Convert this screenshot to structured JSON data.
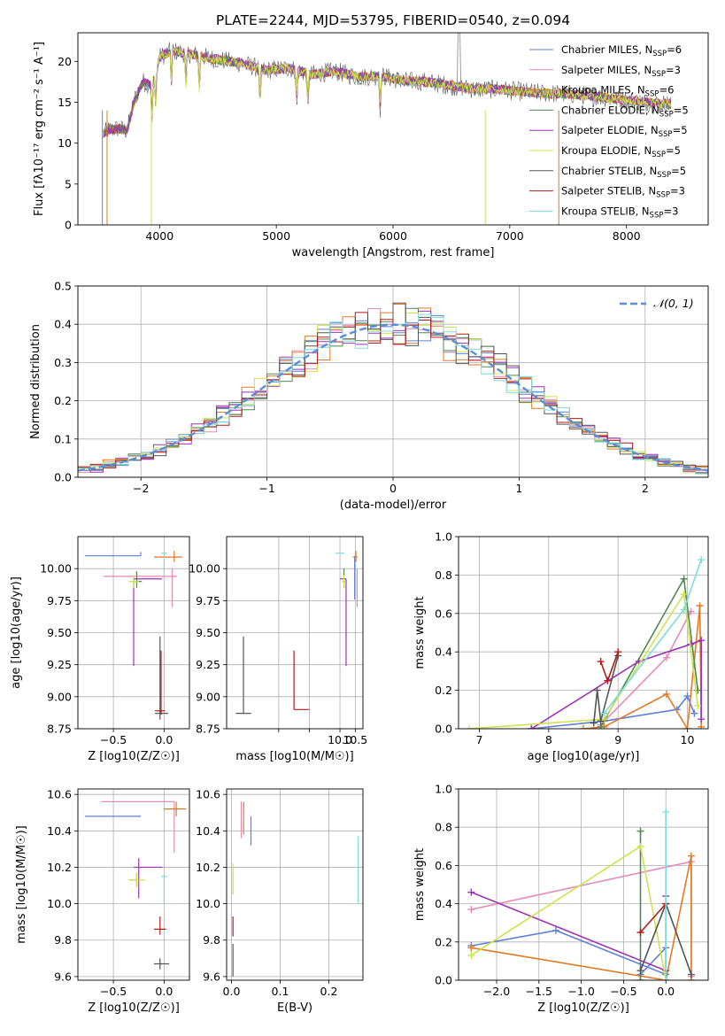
{
  "title": "PLATE=2244, MJD=53795, FIBERID=0540, z=0.094",
  "colors": {
    "Chabrier MILES": "#5f7fd8",
    "Salpeter MILES": "#e48ab6",
    "Kroupa MILES": "#e07a25",
    "Chabrier ELODIE": "#4d8a52",
    "Salpeter ELODIE": "#9b35b4",
    "Kroupa ELODIE": "#cfe24f",
    "Chabrier STELIB": "#555555",
    "Salpeter STELIB": "#b21a1a",
    "Kroupa STELIB": "#7fdcdc",
    "normal": "#5b8ed6"
  },
  "chart_data": [
    {
      "id": "spectrum",
      "type": "line",
      "xlabel": "wavelength [Angstrom, rest frame]",
      "ylabel": "Flux [fλ10⁻¹⁷ erg cm⁻² s⁻¹ A⁻¹]",
      "xlim": [
        3300,
        8700
      ],
      "ylim": [
        0,
        23.5
      ],
      "xticks": [
        4000,
        5000,
        6000,
        7000,
        8000
      ],
      "yticks": [
        0,
        5,
        10,
        15,
        20
      ],
      "grid": false,
      "legend_position": "upper right",
      "continuum_x": [
        3500,
        3560,
        3650,
        3720,
        3790,
        3860,
        3940,
        4000,
        4100,
        4300,
        4500,
        4700,
        4900,
        5100,
        5300,
        5500,
        5700,
        5900,
        6100,
        6300,
        6500,
        6700,
        6900,
        7100,
        7300,
        7500,
        7700,
        7900,
        8100,
        8300
      ],
      "continuum_y": [
        11.0,
        11.6,
        11.8,
        11.5,
        15.5,
        17.5,
        17.0,
        20.5,
        21.3,
        20.8,
        20.2,
        19.8,
        18.9,
        19.2,
        18.4,
        18.8,
        18.1,
        18.2,
        17.6,
        17.5,
        17.0,
        16.6,
        16.6,
        16.3,
        16.1,
        16.0,
        15.8,
        15.4,
        15.1,
        14.8
      ],
      "series": [
        {
          "name": "Chabrier MILES, N_SSP=6",
          "label_main": "Chabrier MILES, N",
          "label_sub": "SSP",
          "label_tail": "=6"
        },
        {
          "name": "Salpeter MILES, N_SSP=3",
          "label_main": "Salpeter MILES, N",
          "label_sub": "SSP",
          "label_tail": "=3"
        },
        {
          "name": "Kroupa MILES, N_SSP=6",
          "label_main": "Kroupa MILES, N",
          "label_sub": "SSP",
          "label_tail": "=6"
        },
        {
          "name": "Chabrier ELODIE, N_SSP=5",
          "label_main": "Chabrier ELODIE, N",
          "label_sub": "SSP",
          "label_tail": "=5"
        },
        {
          "name": "Salpeter ELODIE, N_SSP=5",
          "label_main": "Salpeter ELODIE, N",
          "label_sub": "SSP",
          "label_tail": "=5"
        },
        {
          "name": "Kroupa ELODIE, N_SSP=5",
          "label_main": "Kroupa ELODIE, N",
          "label_sub": "SSP",
          "label_tail": "=5"
        },
        {
          "name": "Chabrier STELIB, N_SSP=5",
          "label_main": "Chabrier STELIB, N",
          "label_sub": "SSP",
          "label_tail": "=5"
        },
        {
          "name": "Salpeter STELIB, N_SSP=3",
          "label_main": "Salpeter STELIB, N",
          "label_sub": "SSP",
          "label_tail": "=3"
        },
        {
          "name": "Kroupa STELIB, N_SSP=3",
          "label_main": "Kroupa STELIB, N",
          "label_sub": "SSP",
          "label_tail": "=3"
        }
      ]
    },
    {
      "id": "residuals",
      "type": "histogram",
      "xlabel": "(data-model)/error",
      "ylabel": "Normed distribution",
      "xlim": [
        -2.5,
        2.5
      ],
      "ylim": [
        0,
        0.5
      ],
      "xticks": [
        -2,
        -1,
        0,
        1,
        2
      ],
      "yticks": [
        0.0,
        0.1,
        0.2,
        0.3,
        0.4,
        0.5
      ],
      "bin_width": 0.1,
      "grid": true,
      "legend_position": "upper right",
      "reference_curve": "N(0,1)"
    },
    {
      "id": "age_vs_Z",
      "type": "errorbar",
      "xlabel": "Z [log10(Z/Z☉)]",
      "ylabel": "age [log10(age/yr)]",
      "xlim": [
        -0.85,
        0.25
      ],
      "ylim": [
        8.75,
        10.25
      ],
      "xticks": [
        -0.5,
        0.0
      ],
      "yticks": [
        8.75,
        9.0,
        9.25,
        9.5,
        9.75,
        10.0
      ],
      "grid": true,
      "points": [
        {
          "model": "Chabrier MILES",
          "x": -0.23,
          "y": 10.1,
          "xerr": [
            0.55,
            0.0
          ],
          "yerr": [
            0.0,
            0.03
          ]
        },
        {
          "model": "Salpeter MILES",
          "x": 0.08,
          "y": 9.94,
          "xerr": [
            0.68,
            0.05
          ],
          "yerr": [
            0.24,
            0.06
          ]
        },
        {
          "model": "Kroupa MILES",
          "x": 0.1,
          "y": 10.09,
          "xerr": [
            0.2,
            0.08
          ],
          "yerr": [
            0.04,
            0.05
          ]
        },
        {
          "model": "Chabrier ELODIE",
          "x": -0.27,
          "y": 9.9,
          "xerr": [
            0.05,
            0.05
          ],
          "yerr": [
            0.05,
            0.08
          ]
        },
        {
          "model": "Salpeter ELODIE",
          "x": -0.3,
          "y": 9.92,
          "xerr": [
            0.0,
            0.28
          ],
          "yerr": [
            0.68,
            0.0
          ]
        },
        {
          "model": "Kroupa ELODIE",
          "x": -0.3,
          "y": 9.9,
          "xerr": [
            0.05,
            0.05
          ],
          "yerr": [
            0.05,
            0.05
          ]
        },
        {
          "model": "Chabrier STELIB",
          "x": -0.04,
          "y": 8.87,
          "xerr": [
            0.05,
            0.08
          ],
          "yerr": [
            0.05,
            0.6
          ]
        },
        {
          "model": "Salpeter STELIB",
          "x": -0.03,
          "y": 8.89,
          "xerr": [
            0.06,
            0.04
          ],
          "yerr": [
            0.03,
            0.47
          ]
        },
        {
          "model": "Kroupa STELIB",
          "x": 0.0,
          "y": 10.12,
          "xerr": [
            0.03,
            0.03
          ],
          "yerr": [
            0.2,
            0.0
          ]
        }
      ]
    },
    {
      "id": "age_vs_mass",
      "type": "errorbar",
      "xlabel": "mass [log10(M/M☉)]",
      "ylabel": "",
      "xlim": [
        6.3,
        10.75
      ],
      "ylim": [
        8.75,
        10.25
      ],
      "xticks": [
        8.0,
        9.0,
        10.0,
        10.5
      ],
      "xticklabels": [
        "",
        "",
        "10.0",
        "10.5"
      ],
      "yticks": [
        8.75,
        9.0,
        9.25,
        9.5,
        9.75,
        10.0
      ],
      "grid": true,
      "points": [
        {
          "model": "Chabrier MILES",
          "x": 10.48,
          "y": 10.1,
          "xerr": [
            0.0,
            0.0
          ],
          "yerr": [
            0.34,
            0.0
          ]
        },
        {
          "model": "Salpeter MILES",
          "x": 10.56,
          "y": 9.94,
          "xerr": [
            0.0,
            0.0
          ],
          "yerr": [
            0.24,
            0.06
          ]
        },
        {
          "model": "Kroupa MILES",
          "x": 10.52,
          "y": 10.09,
          "xerr": [
            0.1,
            0.06
          ],
          "yerr": [
            0.04,
            0.05
          ]
        },
        {
          "model": "Chabrier ELODIE",
          "x": 10.13,
          "y": 9.9,
          "xerr": [
            0.04,
            0.04
          ],
          "yerr": [
            0.05,
            0.1
          ]
        },
        {
          "model": "Salpeter ELODIE",
          "x": 10.2,
          "y": 9.92,
          "xerr": [
            0.2,
            0.0
          ],
          "yerr": [
            0.68,
            0.0
          ]
        },
        {
          "model": "Kroupa ELODIE",
          "x": 10.13,
          "y": 9.9,
          "xerr": [
            0.06,
            0.06
          ],
          "yerr": [
            0.05,
            0.05
          ]
        },
        {
          "model": "Chabrier STELIB",
          "x": 6.85,
          "y": 8.87,
          "xerr": [
            0.25,
            0.25
          ],
          "yerr": [
            0.0,
            0.6
          ]
        },
        {
          "model": "Salpeter STELIB",
          "x": 8.5,
          "y": 8.9,
          "xerr": [
            0.0,
            0.5
          ],
          "yerr": [
            0.0,
            0.46
          ]
        },
        {
          "model": "Kroupa STELIB",
          "x": 10.15,
          "y": 10.12,
          "xerr": [
            0.3,
            0.0
          ],
          "yerr": [
            0.0,
            0.0
          ]
        }
      ]
    },
    {
      "id": "massweight_vs_age",
      "type": "line",
      "xlabel": "age [log10(age/yr)]",
      "ylabel": "mass weight",
      "xlim": [
        6.7,
        10.3
      ],
      "ylim": [
        0.0,
        1.0
      ],
      "xticks": [
        7,
        8,
        9,
        10
      ],
      "yticks": [
        0.0,
        0.2,
        0.4,
        0.6,
        0.8,
        1.0
      ],
      "grid": true,
      "series": [
        {
          "model": "Chabrier MILES",
          "x": [
            7.75,
            8.8,
            9.85,
            10.0,
            10.1
          ],
          "y": [
            0.0,
            0.04,
            0.1,
            0.17,
            0.08
          ]
        },
        {
          "model": "Salpeter MILES",
          "x": [
            8.75,
            9.7,
            10.05
          ],
          "y": [
            0.02,
            0.37,
            0.61
          ]
        },
        {
          "model": "Kroupa MILES",
          "x": [
            8.5,
            8.8,
            9.7,
            10.0,
            10.18,
            10.2
          ],
          "y": [
            0.0,
            0.01,
            0.18,
            0.0,
            0.64,
            0.01
          ]
        },
        {
          "model": "Chabrier ELODIE",
          "x": [
            8.75,
            9.95,
            10.15
          ],
          "y": [
            0.01,
            0.78,
            0.2
          ]
        },
        {
          "model": "Salpeter ELODIE",
          "x": [
            7.75,
            9.3,
            10.05,
            10.2,
            10.2
          ],
          "y": [
            0.0,
            0.35,
            0.44,
            0.46,
            0.05
          ]
        },
        {
          "model": "Kroupa ELODIE",
          "x": [
            6.85,
            8.8,
            9.95,
            10.15
          ],
          "y": [
            0.0,
            0.05,
            0.7,
            0.12
          ]
        },
        {
          "model": "Chabrier STELIB",
          "x": [
            8.65,
            8.7,
            8.75,
            9.0
          ],
          "y": [
            0.03,
            0.2,
            0.04,
            0.38
          ]
        },
        {
          "model": "Salpeter STELIB",
          "x": [
            8.75,
            8.85,
            9.0
          ],
          "y": [
            0.35,
            0.25,
            0.4
          ]
        },
        {
          "model": "Kroupa STELIB",
          "x": [
            8.8,
            9.95,
            10.2
          ],
          "y": [
            0.08,
            0.62,
            0.88
          ]
        }
      ]
    },
    {
      "id": "mass_vs_Z",
      "type": "errorbar",
      "xlabel": "Z [log10(Z/Z☉)]",
      "ylabel": "mass [log10(M/M☉)]",
      "xlim": [
        -0.85,
        0.25
      ],
      "ylim": [
        9.58,
        10.63
      ],
      "xticks": [
        -0.5,
        0.0
      ],
      "yticks": [
        9.6,
        9.8,
        10.0,
        10.2,
        10.4,
        10.6
      ],
      "grid": true,
      "points": [
        {
          "model": "Chabrier MILES",
          "x": -0.23,
          "y": 10.48,
          "xerr": [
            0.55,
            0.0
          ],
          "yerr": [
            0.0,
            0.0
          ]
        },
        {
          "model": "Salpeter MILES",
          "x": 0.1,
          "y": 10.56,
          "xerr": [
            0.72,
            0.0
          ],
          "yerr": [
            0.28,
            0.0
          ]
        },
        {
          "model": "Kroupa MILES",
          "x": 0.12,
          "y": 10.52,
          "xerr": [
            0.12,
            0.1
          ],
          "yerr": [
            0.04,
            0.04
          ]
        },
        {
          "model": "Chabrier ELODIE",
          "x": -0.27,
          "y": 10.13,
          "xerr": [
            0.07,
            0.0
          ],
          "yerr": [
            0.04,
            0.04
          ]
        },
        {
          "model": "Salpeter ELODIE",
          "x": -0.25,
          "y": 10.2,
          "xerr": [
            0.05,
            0.23
          ],
          "yerr": [
            0.17,
            0.05
          ]
        },
        {
          "model": "Kroupa ELODIE",
          "x": -0.27,
          "y": 10.13,
          "xerr": [
            0.08,
            0.08
          ],
          "yerr": [
            0.04,
            0.04
          ]
        },
        {
          "model": "Chabrier STELIB",
          "x": -0.04,
          "y": 9.67,
          "xerr": [
            0.06,
            0.09
          ],
          "yerr": [
            0.03,
            0.03
          ]
        },
        {
          "model": "Salpeter STELIB",
          "x": -0.04,
          "y": 9.86,
          "xerr": [
            0.06,
            0.06
          ],
          "yerr": [
            0.03,
            0.07
          ]
        },
        {
          "model": "Kroupa STELIB",
          "x": 0.0,
          "y": 10.15,
          "xerr": [
            0.03,
            0.03
          ],
          "yerr": [
            0.15,
            0.0
          ]
        }
      ]
    },
    {
      "id": "mass_vs_ebv",
      "type": "errorbar",
      "xlabel": "E(B-V)",
      "ylabel": "",
      "xlim": [
        -0.01,
        0.27
      ],
      "ylim": [
        9.58,
        10.63
      ],
      "xticks": [
        0.0,
        0.1,
        0.2
      ],
      "yticks": [
        9.6,
        9.8,
        10.0,
        10.2,
        10.4,
        10.6
      ],
      "grid": true,
      "points": [
        {
          "model": "Chabrier MILES",
          "x": 0.04,
          "y": 10.48,
          "xerr": [
            0.0,
            0.0
          ],
          "yerr": [
            0.16,
            0.0
          ]
        },
        {
          "model": "Salpeter MILES",
          "x": 0.02,
          "y": 10.56,
          "xerr": [
            0.0,
            0.0
          ],
          "yerr": [
            0.2,
            0.0
          ]
        },
        {
          "model": "Kroupa MILES",
          "x": 0.025,
          "y": 10.56,
          "xerr": [
            0.0,
            0.0
          ],
          "yerr": [
            0.18,
            0.0
          ]
        },
        {
          "model": "Chabrier ELODIE",
          "x": 0.003,
          "y": 10.13,
          "xerr": [
            0.0,
            0.0
          ],
          "yerr": [
            0.0,
            0.0
          ]
        },
        {
          "model": "Salpeter ELODIE",
          "x": 0.003,
          "y": 10.25,
          "xerr": [
            0.0,
            0.0
          ],
          "yerr": [
            0.0,
            0.0
          ]
        },
        {
          "model": "Kroupa ELODIE",
          "x": 0.003,
          "y": 10.1,
          "xerr": [
            0.0,
            0.0
          ],
          "yerr": [
            0.05,
            0.12
          ]
        },
        {
          "model": "Chabrier STELIB",
          "x": 0.003,
          "y": 9.6,
          "xerr": [
            0.0,
            0.0
          ],
          "yerr": [
            0.0,
            0.18
          ]
        },
        {
          "model": "Salpeter STELIB",
          "x": 0.003,
          "y": 9.82,
          "xerr": [
            0.0,
            0.0
          ],
          "yerr": [
            0.0,
            0.11
          ]
        },
        {
          "model": "Kroupa STELIB",
          "x": 0.26,
          "y": 10.0,
          "xerr": [
            0.0,
            0.0
          ],
          "yerr": [
            0.0,
            0.37
          ]
        }
      ]
    },
    {
      "id": "massweight_vs_Z",
      "type": "line",
      "xlabel": "Z [log10(Z/Z☉)]",
      "ylabel": "mass weight",
      "xlim": [
        -2.45,
        0.5
      ],
      "ylim": [
        0.0,
        1.0
      ],
      "xticks": [
        -2.0,
        -1.5,
        -1.0,
        -0.5,
        0.0
      ],
      "yticks": [
        0.0,
        0.2,
        0.4,
        0.6,
        0.8,
        1.0
      ],
      "grid": true,
      "series": [
        {
          "model": "Chabrier MILES",
          "x": [
            -2.3,
            -1.3,
            0.0,
            0.0,
            -0.3
          ],
          "y": [
            0.18,
            0.26,
            0.03,
            0.17,
            0.03
          ]
        },
        {
          "model": "Salpeter MILES",
          "x": [
            -2.3,
            0.3,
            0.3
          ],
          "y": [
            0.37,
            0.62,
            0.02
          ]
        },
        {
          "model": "Kroupa MILES",
          "x": [
            -2.3,
            0.0,
            0.3,
            0.3
          ],
          "y": [
            0.17,
            0.0,
            0.65,
            0.0
          ]
        },
        {
          "model": "Chabrier ELODIE",
          "x": [
            -0.3,
            -0.3
          ],
          "y": [
            0.0,
            0.78
          ]
        },
        {
          "model": "Salpeter ELODIE",
          "x": [
            -2.3,
            0.0,
            0.0,
            0.0
          ],
          "y": [
            0.46,
            0.05,
            0.44,
            0.0
          ]
        },
        {
          "model": "Kroupa ELODIE",
          "x": [
            -2.3,
            -0.3,
            0.0
          ],
          "y": [
            0.13,
            0.7,
            0.0
          ]
        },
        {
          "model": "Chabrier STELIB",
          "x": [
            -0.3,
            0.0,
            0.3
          ],
          "y": [
            0.05,
            0.4,
            0.03
          ]
        },
        {
          "model": "Salpeter STELIB",
          "x": [
            -0.3,
            0.0
          ],
          "y": [
            0.25,
            0.4
          ]
        },
        {
          "model": "Kroupa STELIB",
          "x": [
            0.0,
            0.0
          ],
          "y": [
            0.0,
            0.88
          ]
        }
      ]
    }
  ]
}
